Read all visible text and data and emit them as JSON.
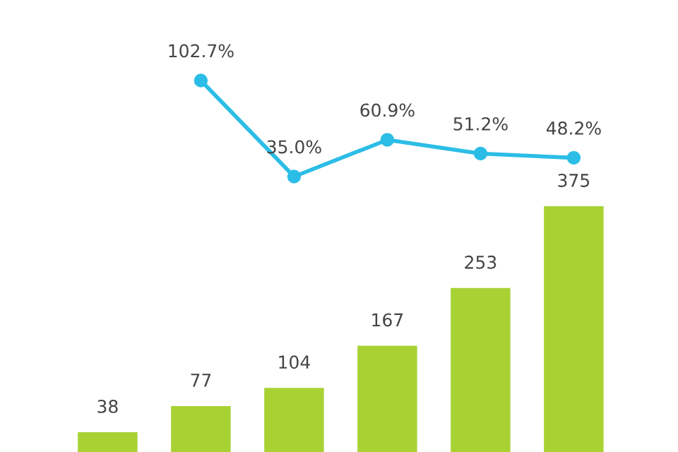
{
  "chart_data": [
    {
      "type": "bar",
      "categories": [
        null,
        null,
        null,
        null,
        null,
        null
      ],
      "color": "#a8d234",
      "values": [
        38,
        77,
        104,
        167,
        253,
        375
      ],
      "value_labels": [
        "38",
        "77",
        "104",
        "167",
        "253",
        "375"
      ],
      "tick_labels": false
    },
    {
      "type": "line",
      "categories": [
        null,
        null,
        null,
        null,
        null
      ],
      "color": "#2bbde6",
      "values": [
        102.7,
        35.0,
        60.9,
        51.2,
        48.2
      ],
      "value_labels": [
        "102.7%",
        "35.0%",
        "60.9%",
        "51.2%",
        "48.2%"
      ],
      "marker": "circle",
      "line_style": "solid",
      "tick_labels": false
    }
  ]
}
